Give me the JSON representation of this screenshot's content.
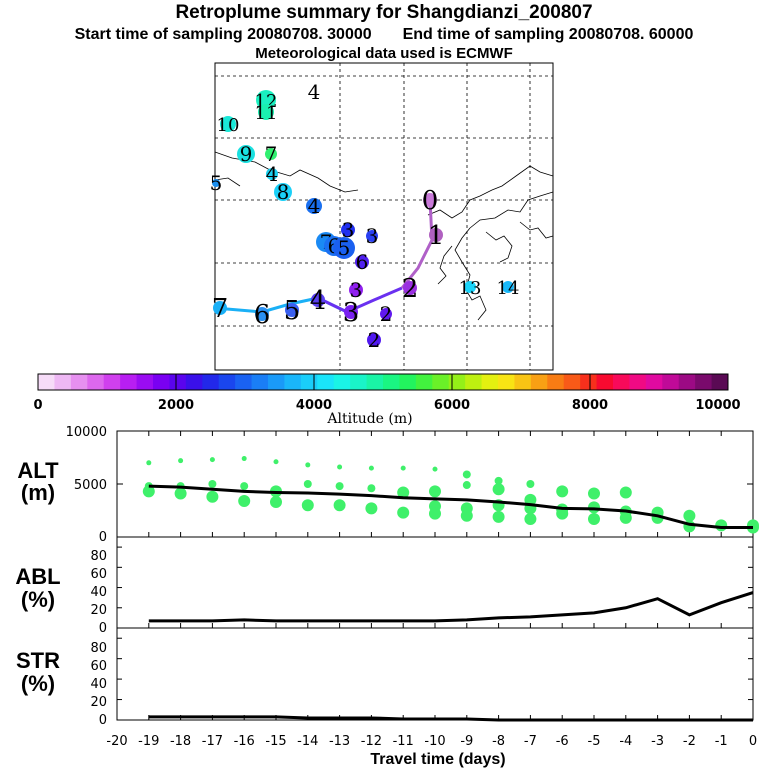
{
  "header": {
    "title": "Retroplume summary for Shangdianzi_200807",
    "start_label": "Start time of sampling 20080708. 30000",
    "end_label": "End time of sampling 20080708. 60000",
    "met_label": "Meteorological data used is ECMWF"
  },
  "colors": {
    "plume_green": "#3ff06a",
    "line": "#000000",
    "colorbar": [
      "#f6dcf8",
      "#eeb8f4",
      "#e690f0",
      "#dd68ee",
      "#d040ee",
      "#b81ef2",
      "#9a0cf2",
      "#7a00f2",
      "#5a04ee",
      "#3a10ea",
      "#2228ea",
      "#1a46ee",
      "#1a62f2",
      "#1a7ef6",
      "#1a9af8",
      "#1ab6fa",
      "#1acefa",
      "#1ae4fa",
      "#1af4e6",
      "#1af4c8",
      "#1af4a6",
      "#1af682",
      "#22f45e",
      "#42f23e",
      "#6af028",
      "#94f018",
      "#bef010",
      "#e4f010",
      "#f8e414",
      "#f8c414",
      "#f8a014",
      "#f87c14",
      "#f85a18",
      "#f8301c",
      "#f80a30",
      "#f80a5a",
      "#f00a84",
      "#e00aa0",
      "#c00a98",
      "#9c0a84",
      "#7a0a6c",
      "#5a0a54"
    ]
  },
  "colorbar": {
    "ticks": [
      "0",
      "2000",
      "4000",
      "6000",
      "8000",
      "10000"
    ],
    "label": "Altitude (m)"
  },
  "map": {
    "trajectory_labels": [
      {
        "text": "0",
        "color": "#c878d8"
      },
      {
        "text": "1",
        "color": "#b060c0"
      },
      {
        "text": "2",
        "color": "#9a30e0"
      },
      {
        "text": "3",
        "color": "#7a20f0"
      },
      {
        "text": "4",
        "color": "#5a40f0"
      },
      {
        "text": "5",
        "color": "#3a60f0"
      },
      {
        "text": "6",
        "color": "#2a90f2"
      },
      {
        "text": "7",
        "color": "#1ab0f6"
      }
    ],
    "clusters": [
      {
        "text": "13",
        "color": "#1ad4fa"
      },
      {
        "text": "14",
        "color": "#1ab8f8"
      },
      {
        "text": "12",
        "color": "#1af0c0"
      },
      {
        "text": "11",
        "color": "#1af0b0"
      },
      {
        "text": "10",
        "color": "#1ae8d8"
      },
      {
        "text": "9",
        "color": "#1ae0e0"
      },
      {
        "text": "7",
        "color": "#30f070"
      },
      {
        "text": "4",
        "color": "#1ad0f0"
      },
      {
        "text": "8",
        "color": "#1ad0f8"
      },
      {
        "text": "4",
        "color": "#1a70f0"
      },
      {
        "text": "3",
        "color": "#2030f0"
      },
      {
        "text": "3",
        "color": "#2a40f2"
      },
      {
        "text": "7",
        "color": "#1a8af4"
      },
      {
        "text": "6",
        "color": "#1a70f2"
      },
      {
        "text": "5",
        "color": "#1a60f0"
      },
      {
        "text": "6",
        "color": "#5020f0"
      },
      {
        "text": "3",
        "color": "#9020f0"
      },
      {
        "text": "2",
        "color": "#6018f0"
      },
      {
        "text": "2",
        "color": "#5018f0"
      },
      {
        "text": "5",
        "color": "#1a90f2"
      },
      {
        "text": "4",
        "color": "#000000"
      }
    ]
  },
  "panels": {
    "alt_label": "ALT",
    "alt_unit": "(m)",
    "abl_label": "ABL",
    "abl_unit": "(%)",
    "str_label": "STR",
    "str_unit": "(%)",
    "alt_ticks": [
      "10000",
      "5000",
      "0"
    ],
    "pct_ticks": [
      "80",
      "60",
      "40",
      "20",
      "0"
    ],
    "x_ticks": [
      "-20",
      "-19",
      "-18",
      "-17",
      "-16",
      "-15",
      "-14",
      "-13",
      "-12",
      "-11",
      "-10",
      "-9",
      "-8",
      "-7",
      "-6",
      "-5",
      "-4",
      "-3",
      "-2",
      "-1",
      "0"
    ],
    "xlabel": "Travel time (days)"
  },
  "chart_data": [
    {
      "type": "line",
      "title": "ALT",
      "ylabel": "ALT (m)",
      "xlabel": "Travel time (days)",
      "xlim": [
        -20,
        0
      ],
      "ylim": [
        0,
        10000
      ],
      "series": [
        {
          "name": "mean altitude",
          "x": [
            -19,
            -18,
            -17,
            -16,
            -15,
            -14,
            -13,
            -12,
            -11,
            -10,
            -9,
            -8,
            -7,
            -6,
            -5,
            -4,
            -3,
            -2,
            -1,
            0
          ],
          "values": [
            4800,
            4700,
            4500,
            4300,
            4200,
            4150,
            4050,
            3900,
            3700,
            3600,
            3500,
            3300,
            3050,
            2700,
            2650,
            2450,
            2000,
            1200,
            900,
            900
          ]
        }
      ],
      "clusters": [
        {
          "x": -19,
          "alts": [
            7000,
            4800,
            4300
          ]
        },
        {
          "x": -18,
          "alts": [
            7200,
            4800,
            4100
          ]
        },
        {
          "x": -17,
          "alts": [
            7300,
            5000,
            3800
          ]
        },
        {
          "x": -16,
          "alts": [
            7400,
            4800,
            3400
          ]
        },
        {
          "x": -15,
          "alts": [
            7100,
            4300,
            3300
          ]
        },
        {
          "x": -14,
          "alts": [
            6800,
            5000,
            3000
          ]
        },
        {
          "x": -13,
          "alts": [
            6600,
            4800,
            3000
          ]
        },
        {
          "x": -12,
          "alts": [
            6500,
            4600,
            2700
          ]
        },
        {
          "x": -11,
          "alts": [
            6500,
            4200,
            2300
          ]
        },
        {
          "x": -10,
          "alts": [
            6400,
            4300,
            2900,
            2200
          ]
        },
        {
          "x": -9,
          "alts": [
            5900,
            4900,
            2700,
            2000
          ]
        },
        {
          "x": -8,
          "alts": [
            5300,
            4500,
            3000,
            1900
          ]
        },
        {
          "x": -7,
          "alts": [
            5000,
            3500,
            2700,
            1700
          ]
        },
        {
          "x": -6,
          "alts": [
            4300,
            2600,
            2200
          ]
        },
        {
          "x": -5,
          "alts": [
            4100,
            2800,
            1700
          ]
        },
        {
          "x": -4,
          "alts": [
            4200,
            2400,
            1800
          ]
        },
        {
          "x": -3,
          "alts": [
            2300,
            1800
          ]
        },
        {
          "x": -2,
          "alts": [
            2000,
            1000
          ]
        },
        {
          "x": -1,
          "alts": [
            1100
          ]
        },
        {
          "x": 0,
          "alts": [
            1100,
            900
          ]
        }
      ]
    },
    {
      "type": "line",
      "title": "ABL",
      "ylabel": "ABL (%)",
      "xlim": [
        -20,
        0
      ],
      "ylim": [
        0,
        90
      ],
      "series": [
        {
          "name": "ABL fraction",
          "x": [
            -19,
            -18,
            -17,
            -16,
            -15,
            -14,
            -13,
            -12,
            -11,
            -10,
            -9,
            -8,
            -7,
            -6,
            -5,
            -4,
            -3,
            -2,
            -1,
            0
          ],
          "values": [
            7,
            7,
            7,
            8,
            7,
            7,
            7,
            7,
            7,
            7,
            8,
            10,
            11,
            13,
            15,
            20,
            29,
            13,
            25,
            35
          ]
        }
      ]
    },
    {
      "type": "line",
      "title": "STR",
      "ylabel": "STR (%)",
      "xlim": [
        -20,
        0
      ],
      "ylim": [
        0,
        90
      ],
      "series": [
        {
          "name": "STR fraction",
          "x": [
            -19,
            -18,
            -17,
            -16,
            -15,
            -14,
            -13,
            -12,
            -11,
            -10,
            -9,
            -8,
            -7,
            -6,
            -5,
            -4,
            -3,
            -2,
            -1,
            0
          ],
          "values": [
            3,
            3,
            3,
            3,
            3,
            2,
            2,
            2,
            1,
            1,
            1,
            0,
            0,
            0,
            0,
            0,
            0,
            0,
            0,
            0
          ]
        }
      ]
    }
  ]
}
